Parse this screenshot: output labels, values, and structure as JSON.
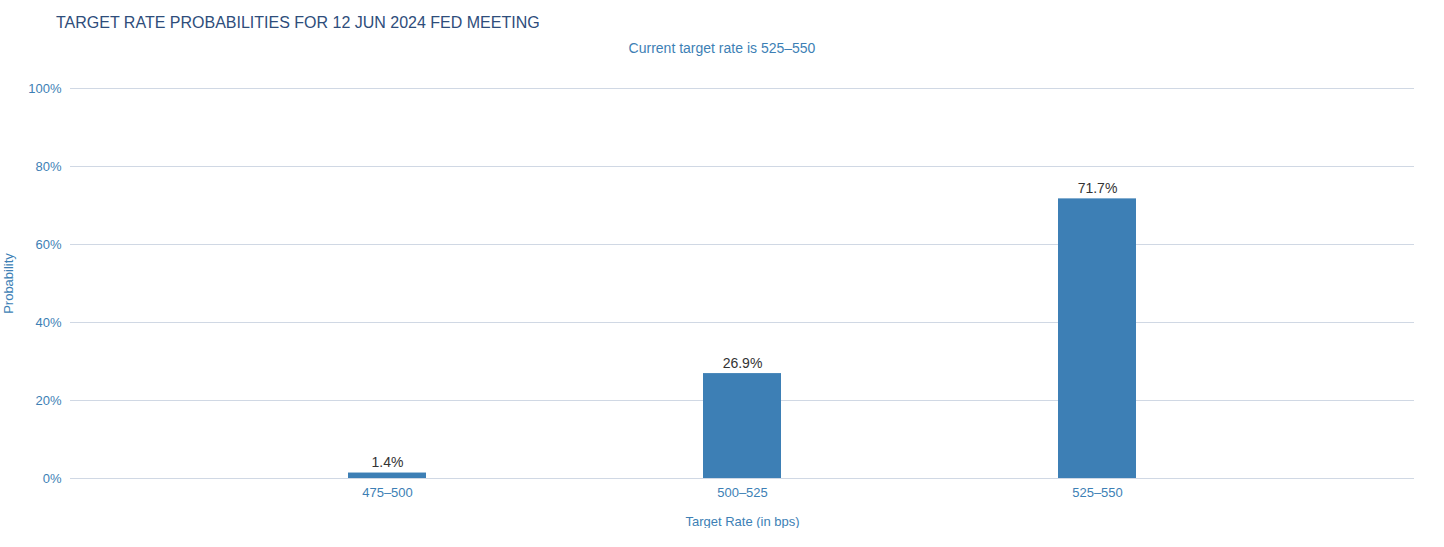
{
  "chart_data": {
    "type": "bar",
    "title": "TARGET RATE PROBABILITIES FOR 12 JUN 2024 FED MEETING",
    "subtitle": "Current target rate is 525–550",
    "categories": [
      "475–500",
      "500–525",
      "525–550"
    ],
    "values": [
      1.4,
      26.9,
      71.7
    ],
    "value_labels": [
      "1.4%",
      "26.9%",
      "71.7%"
    ],
    "data_labels": true,
    "color": "#3d7fb5",
    "xlabel": "Target Rate (in bps)",
    "ylabel": "Probability",
    "ylim": [
      0,
      100
    ],
    "yticks": [
      {
        "value": 0,
        "label": "0%"
      },
      {
        "value": 20,
        "label": "20%"
      },
      {
        "value": 40,
        "label": "40%"
      },
      {
        "value": 60,
        "label": "60%"
      },
      {
        "value": 80,
        "label": "80%"
      },
      {
        "value": 100,
        "label": "100%"
      }
    ],
    "grid": true
  }
}
